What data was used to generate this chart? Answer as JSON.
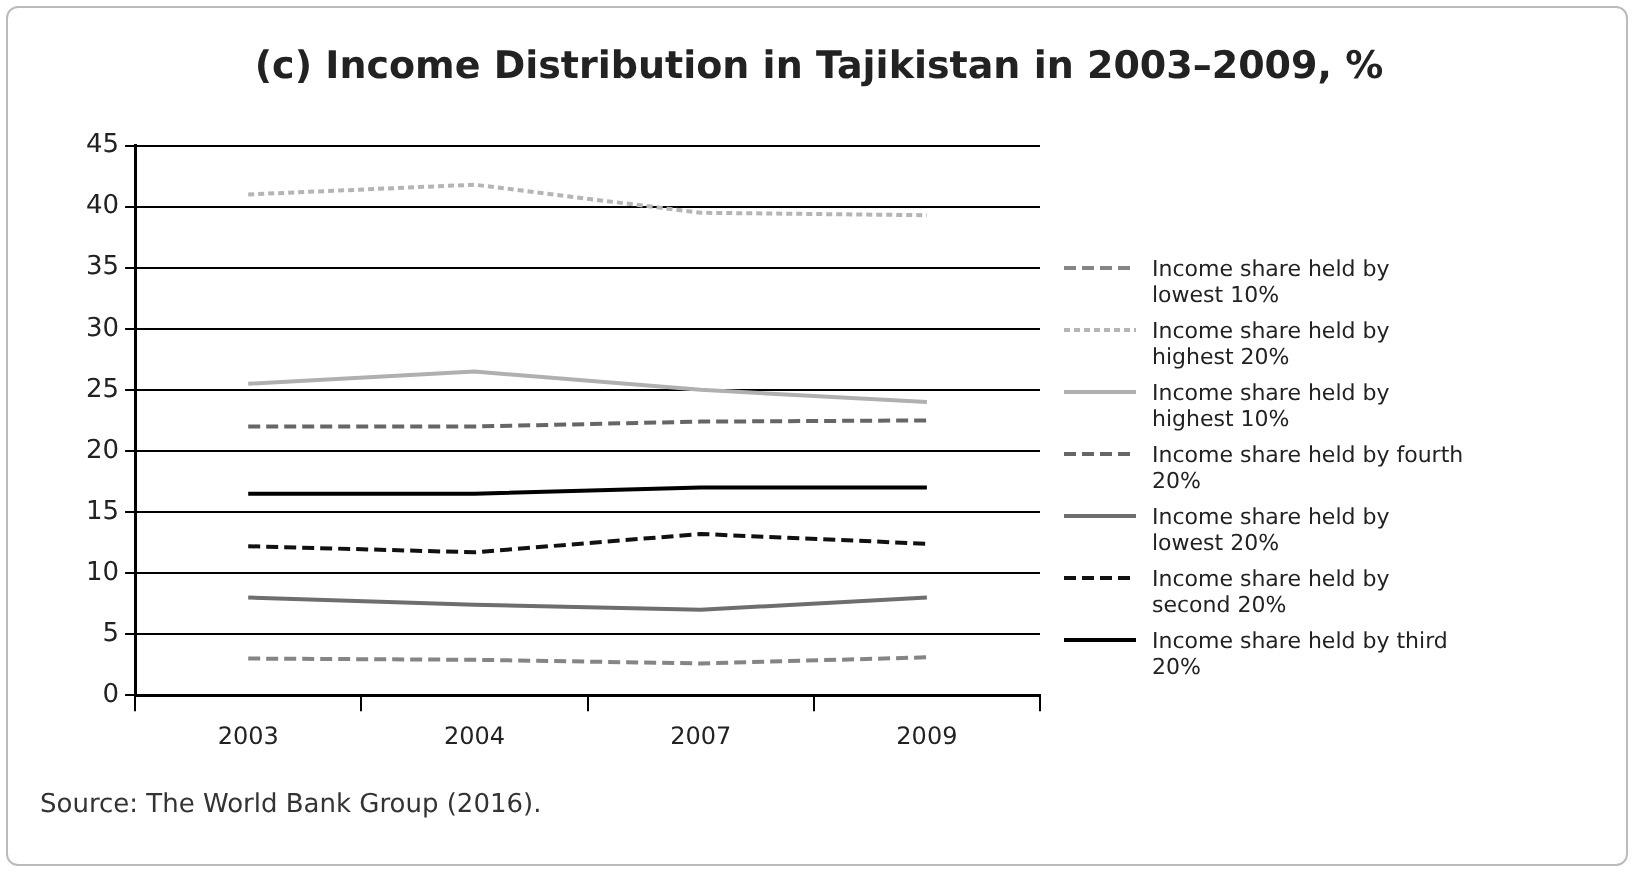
{
  "chart_data": {
    "type": "line",
    "title": "(c) Income Distribution in Tajikistan in 2003–2009, %",
    "categories": [
      "2003",
      "2004",
      "2007",
      "2009"
    ],
    "ylim": [
      0,
      45
    ],
    "yticks": [
      0,
      5,
      10,
      15,
      20,
      25,
      30,
      35,
      40,
      45
    ],
    "grid": "y",
    "legend": "right",
    "marker": "none",
    "annotations": [
      "Source: The World Bank Group (2016)."
    ],
    "series": [
      {
        "name": "Income share held by lowest 10%",
        "color": "#858585",
        "line_style": "dashed",
        "values": [
          3,
          2.9,
          2.6,
          3.1
        ]
      },
      {
        "name": "Income share held by highest 20%",
        "color": "#b5b5b5",
        "line_style": "dotted",
        "values": [
          41,
          41.8,
          39.5,
          39.3
        ]
      },
      {
        "name": "Income share held by highest 10%",
        "color": "#b0b0b0",
        "line_style": "solid",
        "values": [
          25.5,
          26.5,
          25,
          24
        ]
      },
      {
        "name": "Income share held by fourth 20%",
        "color": "#666666",
        "line_style": "dashed",
        "values": [
          22,
          22,
          22.4,
          22.5
        ]
      },
      {
        "name": "Income share held by lowest 20%",
        "color": "#6e6e6e",
        "line_style": "solid",
        "values": [
          8,
          7.4,
          7,
          8
        ]
      },
      {
        "name": "Income share held by second 20%",
        "color": "#111111",
        "line_style": "dashed",
        "values": [
          12.2,
          11.7,
          13.2,
          12.4
        ]
      },
      {
        "name": "Income share held by third 20%",
        "color": "#000000",
        "line_style": "solid",
        "values": [
          16.5,
          16.5,
          17,
          17
        ]
      }
    ]
  }
}
